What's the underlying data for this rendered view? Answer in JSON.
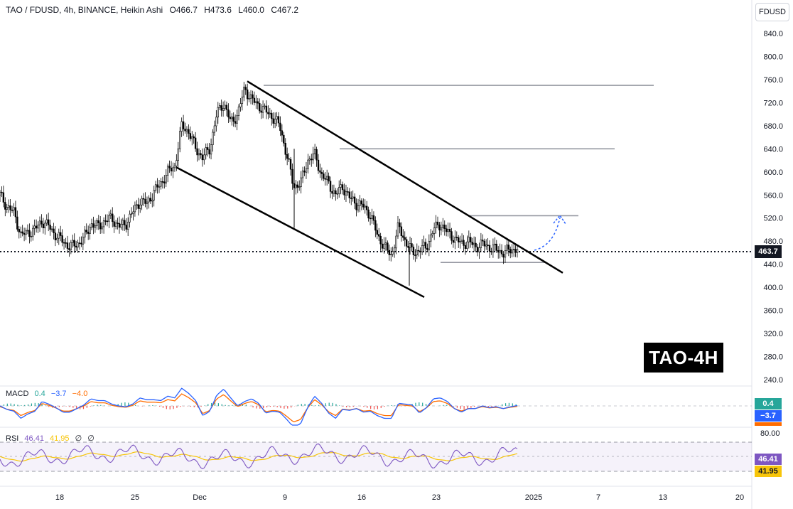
{
  "header": {
    "symbol": "TAO / FDUSD, 4h, BINANCE, Heikin Ashi",
    "open": "O466.7",
    "high": "H473.6",
    "low": "L460.0",
    "close": "C467.2"
  },
  "currency_button": "FDUSD",
  "badge_text": "TAO-4H",
  "current_price": "463.7",
  "colors": {
    "up": "#26a69a",
    "down": "#ef5350",
    "candle": "#000000",
    "macd_line": "#2962ff",
    "signal_line": "#ff6d00",
    "rsi_line": "#7e57c2",
    "rsi_ma": "#f7c50a",
    "level_line": "#9598a1",
    "forecast_arrow": "#2962ff"
  },
  "macd": {
    "label": "MACD",
    "histogram": "0.4",
    "macd": "−3.7",
    "signal": "−4.0",
    "tag_hist": "0.4",
    "tag_macd": "−3.7"
  },
  "rsi": {
    "label": "RSI",
    "value": "46.41",
    "ma": "41.95",
    "extra1": "∅",
    "extra2": "∅",
    "tag_value": "46.41",
    "tag_ma": "41.95",
    "scale_label": "80.00"
  },
  "chart_data": {
    "type": "line",
    "style": "heikin-ashi candlestick",
    "x_ticks": [
      "18",
      "25",
      "Dec",
      "9",
      "16",
      "23",
      "2025",
      "7",
      "13",
      "20"
    ],
    "y_ticks": [
      "840.0",
      "800.0",
      "760.0",
      "720.0",
      "680.0",
      "640.0",
      "600.0",
      "560.0",
      "520.0",
      "480.0",
      "440.0",
      "400.0",
      "360.0",
      "320.0",
      "280.0",
      "240.0"
    ],
    "ylim": [
      232,
      855
    ],
    "series": [
      {
        "values_note": "approximate Heikin Ashi closes, 4h bars, Nov 12 2024 - Dec 31 2024",
        "t": [
          0,
          4,
          8,
          12,
          16,
          20,
          24,
          28,
          32,
          36,
          40,
          44,
          48,
          52,
          56,
          60,
          64,
          68,
          72,
          76,
          80,
          84,
          88,
          92,
          96,
          100,
          104,
          108,
          112,
          116,
          120,
          124,
          128,
          132,
          136,
          140,
          144,
          148,
          152,
          156,
          160,
          164,
          168,
          172,
          176,
          180,
          184,
          188,
          192,
          196,
          200,
          204,
          208,
          212,
          216,
          220,
          224,
          228,
          232,
          236,
          240,
          244,
          248,
          252,
          256,
          260,
          264,
          268,
          272,
          276,
          280,
          284,
          288,
          292,
          296
        ],
        "values": [
          560,
          540,
          530,
          490,
          495,
          500,
          515,
          505,
          490,
          480,
          470,
          475,
          485,
          510,
          505,
          515,
          520,
          505,
          510,
          530,
          550,
          545,
          565,
          580,
          600,
          610,
          680,
          670,
          640,
          625,
          640,
          700,
          720,
          685,
          700,
          745,
          725,
          715,
          705,
          695,
          680,
          630,
          575,
          580,
          620,
          630,
          595,
          580,
          560,
          575,
          555,
          545,
          540,
          525,
          490,
          470,
          455,
          505,
          480,
          460,
          465,
          470,
          500,
          510,
          495,
          485,
          475,
          480,
          470,
          475,
          470,
          465,
          460,
          465,
          467
        ]
      }
    ],
    "lines": [
      {
        "kind": "channel-upper",
        "from": [
          "Dec 6",
          757
        ],
        "to": [
          "Jan 3",
          425
        ]
      },
      {
        "kind": "channel-lower",
        "from": [
          "Nov 29",
          608
        ],
        "to": [
          "Dec 22",
          383
        ]
      },
      {
        "kind": "level",
        "value": 750
      },
      {
        "kind": "level",
        "value": 640
      },
      {
        "kind": "level",
        "value": 524
      },
      {
        "kind": "level",
        "value": 443
      }
    ]
  }
}
